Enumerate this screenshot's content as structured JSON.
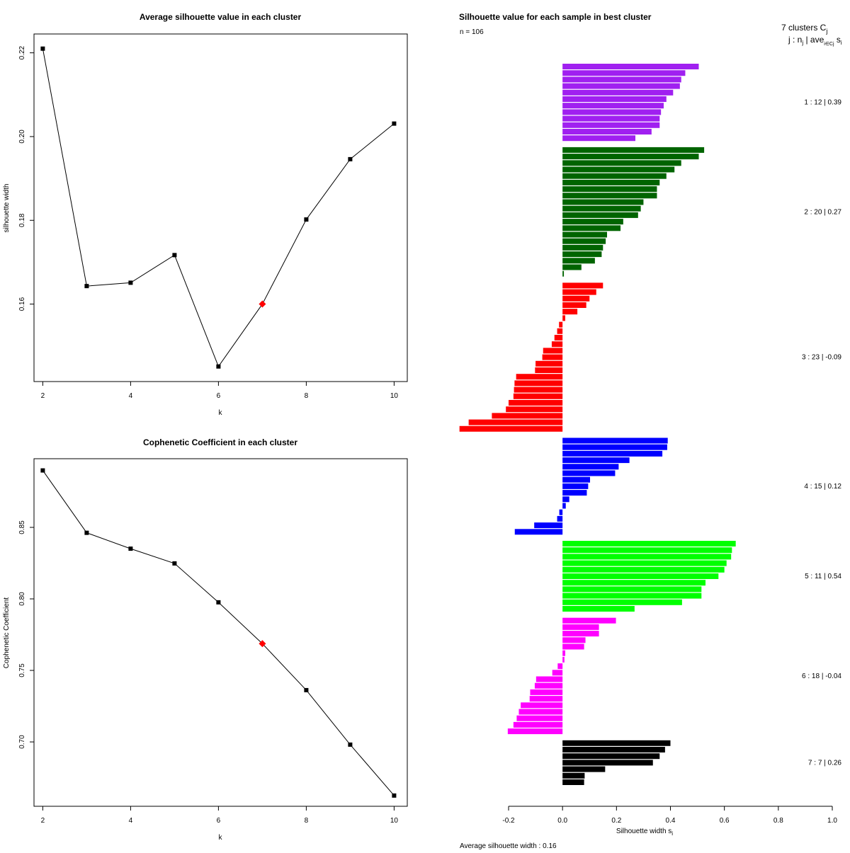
{
  "chart_data": [
    {
      "type": "line",
      "title": "Average silhouette value in each cluster",
      "xlabel": "k",
      "ylabel": "silhouette width",
      "x": [
        2,
        3,
        4,
        5,
        6,
        7,
        8,
        9,
        10
      ],
      "values": [
        0.221,
        0.1643,
        0.1651,
        0.1717,
        0.1451,
        0.16,
        0.1802,
        0.1946,
        0.2031
      ],
      "highlight_x": 7,
      "xlim": [
        1.8,
        10.3
      ],
      "ylim": [
        0.1415,
        0.2245
      ],
      "xticks": [
        2,
        4,
        6,
        8,
        10
      ],
      "xtick_labels": [
        "2",
        "4",
        "6",
        "8",
        "10"
      ],
      "yticks": [
        0.16,
        0.18,
        0.2,
        0.22
      ],
      "ytick_labels": [
        "0.16",
        "0.18",
        "0.20",
        "0.22"
      ],
      "colors": {
        "line": "#000000",
        "point": "#000000",
        "highlight": "#ff0000"
      }
    },
    {
      "type": "line",
      "title": "Cophenetic Coefficient in each cluster",
      "xlabel": "k",
      "ylabel": "Cophenetic Coefficient",
      "x": [
        2,
        3,
        4,
        5,
        6,
        7,
        8,
        9,
        10
      ],
      "values": [
        0.8898,
        0.8462,
        0.8351,
        0.8248,
        0.7976,
        0.7687,
        0.7362,
        0.6981,
        0.6625
      ],
      "highlight_x": 7,
      "xlim": [
        1.8,
        10.3
      ],
      "ylim": [
        0.655,
        0.898
      ],
      "xticks": [
        2,
        4,
        6,
        8,
        10
      ],
      "xtick_labels": [
        "2",
        "4",
        "6",
        "8",
        "10"
      ],
      "yticks": [
        0.7,
        0.75,
        0.8,
        0.85
      ],
      "ytick_labels": [
        "0.70",
        "0.75",
        "0.80",
        "0.85"
      ],
      "colors": {
        "line": "#000000",
        "point": "#000000",
        "highlight": "#ff0000"
      }
    },
    {
      "type": "bar",
      "orientation": "horizontal",
      "title": "Silhouette value for each sample in best cluster",
      "n_label": "n = 106",
      "header_line1": "7 clusters  C",
      "header_line1_sub": "j",
      "header_line2": "j :  n",
      "header_line2_sub1": "j",
      "header_line2_mid": " | ave",
      "header_line2_sub2": "i∈Cj",
      "header_line2_end": "  s",
      "header_line2_sub3": "i",
      "xlabel": "Silhouette width s",
      "xlabel_sub": "i",
      "footer": "Average silhouette width :  0.16",
      "xlim": [
        -0.2,
        1.0
      ],
      "xticks": [
        -0.2,
        0.0,
        0.2,
        0.4,
        0.6,
        0.8,
        1.0
      ],
      "xtick_labels": [
        "-0.2",
        "0.0",
        "0.2",
        "0.4",
        "0.6",
        "0.8",
        "1.0"
      ],
      "clusters": [
        {
          "label": "1 :  12  |  0.39",
          "color": "#a020f0",
          "values": [
            0.505,
            0.455,
            0.44,
            0.435,
            0.41,
            0.385,
            0.375,
            0.365,
            0.36,
            0.36,
            0.33,
            0.27
          ]
        },
        {
          "label": "2 :  20  |  0.27",
          "color": "#006400",
          "values": [
            0.525,
            0.505,
            0.44,
            0.415,
            0.385,
            0.36,
            0.35,
            0.35,
            0.3,
            0.29,
            0.28,
            0.225,
            0.215,
            0.165,
            0.16,
            0.15,
            0.145,
            0.12,
            0.07,
            0.005
          ]
        },
        {
          "label": "3 :  23  |  -0.09",
          "color": "#ff0000",
          "values": [
            0.15,
            0.125,
            0.1,
            0.088,
            0.055,
            0.01,
            -0.013,
            -0.02,
            -0.03,
            -0.04,
            -0.072,
            -0.075,
            -0.1,
            -0.102,
            -0.172,
            -0.178,
            -0.18,
            -0.182,
            -0.2,
            -0.21,
            -0.262,
            -0.348,
            -0.382
          ]
        },
        {
          "label": "4 :  15  |  0.12",
          "color": "#0000ff",
          "values": [
            0.39,
            0.388,
            0.37,
            0.248,
            0.208,
            0.195,
            0.102,
            0.095,
            0.09,
            0.025,
            0.012,
            -0.012,
            -0.02,
            -0.105,
            -0.177
          ]
        },
        {
          "label": "5 :  11  |  0.54",
          "color": "#00ff00",
          "values": [
            0.642,
            0.628,
            0.625,
            0.608,
            0.6,
            0.578,
            0.53,
            0.515,
            0.515,
            0.443,
            0.267
          ]
        },
        {
          "label": "6 :  18  |  -0.04",
          "color": "#ff00ff",
          "values": [
            0.198,
            0.135,
            0.135,
            0.085,
            0.08,
            0.01,
            0.007,
            -0.018,
            -0.038,
            -0.098,
            -0.103,
            -0.12,
            -0.122,
            -0.155,
            -0.162,
            -0.17,
            -0.182,
            -0.203
          ]
        },
        {
          "label": "7 :  7  |  0.26",
          "color": "#000000",
          "values": [
            0.4,
            0.38,
            0.36,
            0.335,
            0.158,
            0.082,
            0.08
          ]
        }
      ]
    }
  ]
}
